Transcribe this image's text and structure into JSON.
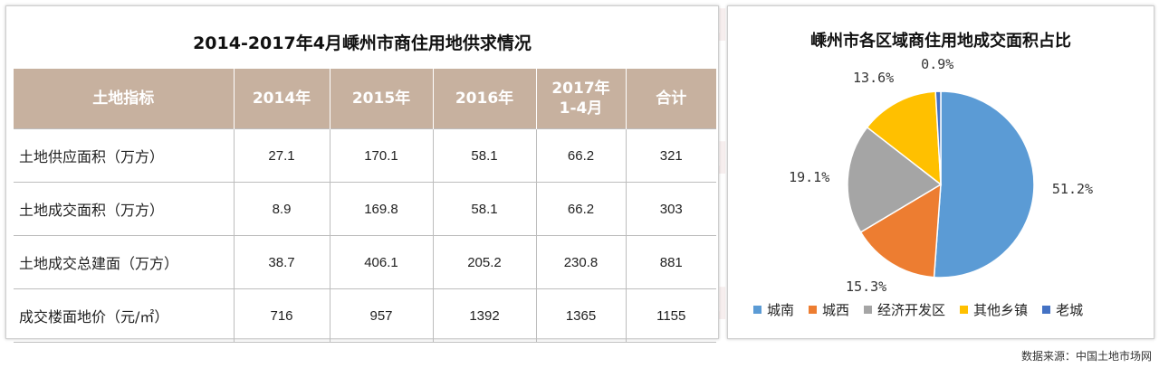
{
  "watermark": {
    "brand": "BUNBO",
    "tagline": "URBAN & RURAL 本埠城鄉"
  },
  "table_panel": {
    "title": "2014-2017年4月嵊州市商住用地供求情况",
    "headers": [
      "土地指标",
      "2014年",
      "2015年",
      "2016年",
      "2017年",
      "合计"
    ],
    "header_2017_line2": "1-4月",
    "rows": [
      {
        "label": "土地供应面积（万方）",
        "v2014": "27.1",
        "v2015": "170.1",
        "v2016": "58.1",
        "v2017": "66.2",
        "total": "321"
      },
      {
        "label": "土地成交面积（万方）",
        "v2014": "8.9",
        "v2015": "169.8",
        "v2016": "58.1",
        "v2017": "66.2",
        "total": "303"
      },
      {
        "label": "土地成交总建面（万方）",
        "v2014": "38.7",
        "v2015": "406.1",
        "v2016": "205.2",
        "v2017": "230.8",
        "total": "881"
      },
      {
        "label": "成交楼面地价（元/㎡）",
        "v2014": "716",
        "v2015": "957",
        "v2016": "1392",
        "v2017": "1365",
        "total": "1155"
      }
    ]
  },
  "chart_data": [
    {
      "type": "table",
      "title": "2014-2017年4月嵊州市商住用地供求情况",
      "columns": [
        "土地指标",
        "2014年",
        "2015年",
        "2016年",
        "2017年1-4月",
        "合计"
      ],
      "rows": [
        [
          "土地供应面积（万方）",
          27.1,
          170.1,
          58.1,
          66.2,
          321
        ],
        [
          "土地成交面积（万方）",
          8.9,
          169.8,
          58.1,
          66.2,
          303
        ],
        [
          "土地成交总建面（万方）",
          38.7,
          406.1,
          205.2,
          230.8,
          881
        ],
        [
          "成交楼面地价（元/㎡）",
          716,
          957,
          1392,
          1365,
          1155
        ]
      ]
    },
    {
      "type": "pie",
      "title": "嵊州市各区域商住用地成交面积占比",
      "categories": [
        "城南",
        "城西",
        "经济开发区",
        "其他乡镇",
        "老城"
      ],
      "values": [
        51.2,
        15.3,
        19.1,
        13.6,
        0.9
      ],
      "labels": [
        "51.2%",
        "15.3%",
        "19.1%",
        "13.6%",
        "0.9%"
      ],
      "colors": [
        "#5b9bd5",
        "#ed7d31",
        "#a5a5a5",
        "#ffc000",
        "#4472c4"
      ],
      "legend": "bottom"
    }
  ],
  "source": "数据来源：中国土地市场网"
}
